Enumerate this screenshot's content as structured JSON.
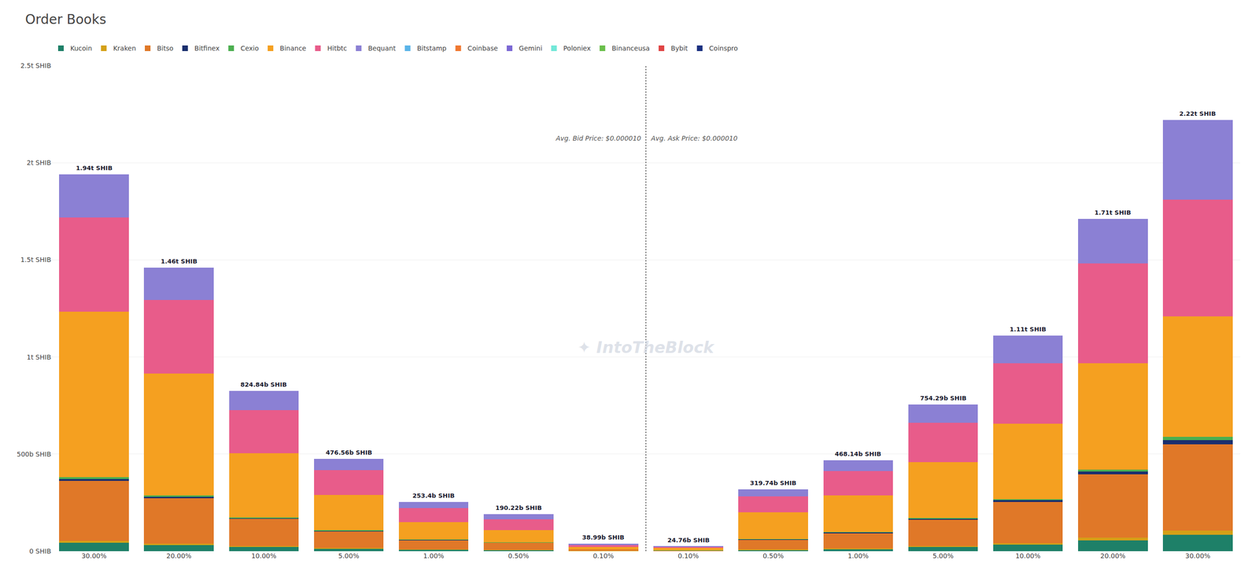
{
  "chart_data": {
    "type": "bar",
    "title": "Order Books",
    "stacked": true,
    "categories": [
      "30.00%",
      "20.00%",
      "10.00%",
      "5.00%",
      "1.00%",
      "0.50%",
      "0.10%",
      "0.10%",
      "0.50%",
      "1.00%",
      "5.00%",
      "10.00%",
      "20.00%",
      "30.00%"
    ],
    "series": [
      {
        "name": "Kucoin",
        "color": "#1e8068",
        "values": [
          42.68,
          32.12,
          20.621,
          13.34368,
          7.602,
          6.08704,
          1.48162,
          0.54472,
          7.03428,
          11.7035,
          21.12012,
          33.3,
          54.72,
          84.36
        ]
      },
      {
        "name": "Kraken",
        "color": "#d4a017",
        "values": [
          9.7,
          7.3,
          4.94904,
          3.33592,
          2.0272,
          1.71198,
          0.3899,
          0.1238,
          1.5987,
          2.80884,
          5.28003,
          8.88,
          15.39,
          22.2
        ]
      },
      {
        "name": "Bitso",
        "color": "#e07828",
        "values": [
          310.4,
          233.6,
          140.2228,
          85.7808,
          48.146,
          36.1418,
          7.798,
          3.9616,
          51.1584,
          79.5838,
          135.7722,
          210.9,
          324.9,
          444
        ]
      },
      {
        "name": "Bitfinex",
        "color": "#1a2f6e",
        "values": [
          9.7,
          7.3,
          4.94904,
          3.33592,
          2.0272,
          1.71198,
          0.3899,
          0.1238,
          1.5987,
          2.80884,
          5.28003,
          8.88,
          15.39,
          22.2
        ]
      },
      {
        "name": "Cexio",
        "color": "#4caf50",
        "values": [
          7.76,
          5.84,
          4.1242,
          2.3828,
          1.5204,
          1.14132,
          0.27293,
          0.09904,
          1.27896,
          2.3407,
          3.77145,
          6.66,
          10.26,
          15.54
        ]
      },
      {
        "name": "Binance",
        "color": "#f5a020",
        "values": [
          853.6,
          627.8,
          329.936,
          181.0928,
          88.69,
          60.8704,
          10.9172,
          10.8944,
          137.4882,
          187.256,
          286.6302,
          388.5,
          547.2,
          621.6
        ]
      },
      {
        "name": "Hitbtc",
        "color": "#e85c8a",
        "values": [
          485,
          379.6,
          222.7068,
          128.6712,
          70.952,
          57.066,
          10.5273,
          6.19,
          83.1324,
          126.3978,
          203.6583,
          310.8,
          513,
          599.4
        ]
      },
      {
        "name": "Bequant",
        "color": "#8b80d4",
        "values": [
          221.16,
          166.44,
          97.33112,
          58.61688,
          32.4352,
          25.48948,
          7.21315,
          2.82264,
          36.45036,
          55.24052,
          92.77767,
          142.08,
          229.14,
          410.7
        ]
      },
      {
        "name": "Bitstamp",
        "color": "#5ab4e8",
        "values": [
          null,
          null,
          null,
          null,
          null,
          null,
          null,
          null,
          null,
          null,
          null,
          null,
          null,
          null
        ]
      },
      {
        "name": "Coinbase",
        "color": "#f07830",
        "values": [
          null,
          null,
          null,
          null,
          null,
          null,
          null,
          null,
          null,
          null,
          null,
          null,
          null,
          null
        ]
      },
      {
        "name": "Gemini",
        "color": "#7b68d4",
        "values": [
          null,
          null,
          null,
          null,
          null,
          null,
          null,
          null,
          null,
          null,
          null,
          null,
          null,
          null
        ]
      },
      {
        "name": "Poloniex",
        "color": "#72e8d8",
        "values": [
          null,
          null,
          null,
          null,
          null,
          null,
          null,
          null,
          null,
          null,
          null,
          null,
          null,
          null
        ]
      },
      {
        "name": "Binanceusa",
        "color": "#6abf4b",
        "values": [
          null,
          null,
          null,
          null,
          null,
          null,
          null,
          null,
          null,
          null,
          null,
          null,
          null,
          null
        ]
      },
      {
        "name": "Bybit",
        "color": "#e04444",
        "values": [
          null,
          null,
          null,
          null,
          null,
          null,
          null,
          null,
          null,
          null,
          null,
          null,
          null,
          null
        ]
      },
      {
        "name": "Coinspro",
        "color": "#1a3080",
        "values": [
          null,
          null,
          null,
          null,
          null,
          null,
          null,
          null,
          null,
          null,
          null,
          null,
          null,
          null
        ]
      }
    ],
    "totals": [
      1940,
      1460,
      824.84,
      476.56,
      253.4,
      190.22,
      38.99,
      24.76,
      319.74,
      468.14,
      754.29,
      1110,
      1710,
      2220
    ],
    "total_labels": [
      "1.94t SHIB",
      "1.46t SHIB",
      "824.84b SHIB",
      "476.56b SHIB",
      "253.4b SHIB",
      "190.22b SHIB",
      "38.99b SHIB",
      "24.76b SHIB",
      "319.74b SHIB",
      "468.14b SHIB",
      "754.29b SHIB",
      "1.11t SHIB",
      "1.71t SHIB",
      "2.22t SHIB"
    ],
    "annotations": [
      "Avg. Bid Price: $0.000010",
      "Avg. Ask Price: $0.000010"
    ],
    "watermark": "✦ IntoTheBlock",
    "ylim": [
      0,
      2500
    ],
    "yticks": [
      {
        "value": 0,
        "label": "0 SHIB"
      },
      {
        "value": 500,
        "label": "500b SHIB"
      },
      {
        "value": 1000,
        "label": "1t SHIB"
      },
      {
        "value": 1500,
        "label": "1.5t SHIB"
      },
      {
        "value": 2000,
        "label": "2t SHIB"
      },
      {
        "value": 2500,
        "label": "2.5t SHIB"
      }
    ],
    "grid": true,
    "legend": "top"
  }
}
